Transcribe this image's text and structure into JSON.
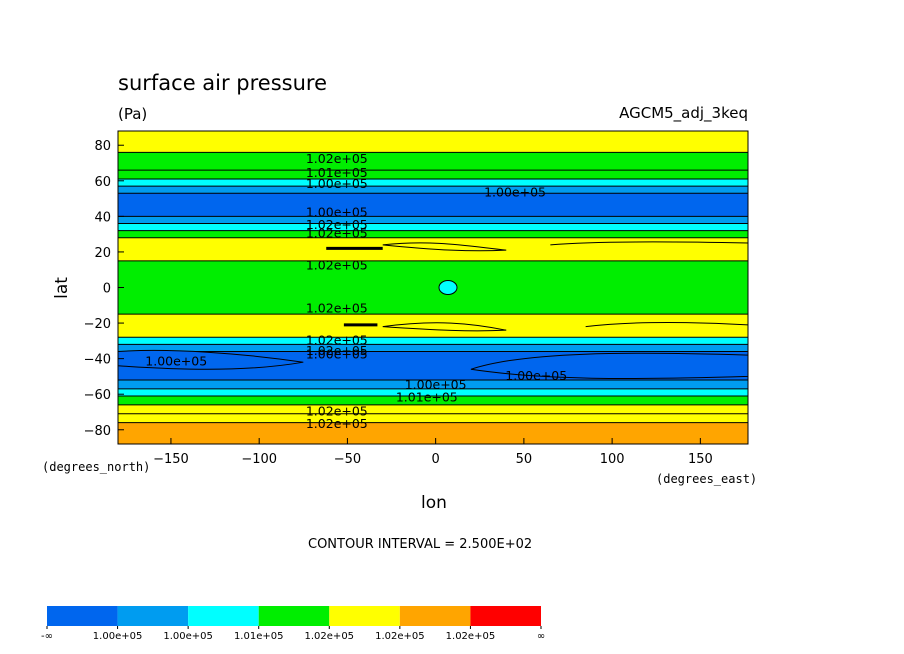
{
  "chart_data": {
    "type": "contour",
    "title": "surface air pressure",
    "subtitle": "(Pa)",
    "dataset_label": "AGCM5_adj_3keq",
    "xlabel": "lon",
    "ylabel": "lat",
    "x_units": "(degrees_east)",
    "y_units": "(degrees_north)",
    "xlim": [
      -180,
      177
    ],
    "ylim": [
      -88,
      88
    ],
    "x_ticks": [
      -150,
      -100,
      -50,
      0,
      50,
      100,
      150
    ],
    "y_ticks": [
      -80,
      -60,
      -40,
      -20,
      0,
      20,
      40,
      60,
      80
    ],
    "contour_interval_text": "CONTOUR INTERVAL = 2.500E+02",
    "contour_labels": [
      {
        "text": "1.02e+05",
        "lon": -56,
        "lat": 72
      },
      {
        "text": "1.01e+05",
        "lon": -56,
        "lat": 64
      },
      {
        "text": "1.00e+05",
        "lon": -56,
        "lat": 58
      },
      {
        "text": "1.00e+05",
        "lon": 45,
        "lat": 53
      },
      {
        "text": "1.00e+05",
        "lon": -56,
        "lat": 42
      },
      {
        "text": "1.02e+05",
        "lon": -56,
        "lat": 35
      },
      {
        "text": "1.02e+05",
        "lon": -56,
        "lat": 30
      },
      {
        "text": "1.02e+05",
        "lon": -56,
        "lat": 12
      },
      {
        "text": "1.02e+05",
        "lon": -56,
        "lat": -12
      },
      {
        "text": "1.02e+05",
        "lon": -56,
        "lat": -30
      },
      {
        "text": "1.02e+05",
        "lon": -56,
        "lat": -36
      },
      {
        "text": "1.00e+05",
        "lon": -56,
        "lat": -38
      },
      {
        "text": "1.00e+05",
        "lon": -147,
        "lat": -42
      },
      {
        "text": "1.00e+05",
        "lon": 57,
        "lat": -50
      },
      {
        "text": "1.00e+05",
        "lon": 0,
        "lat": -55
      },
      {
        "text": "1.01e+05",
        "lon": -5,
        "lat": -62
      },
      {
        "text": "1.02e+05",
        "lon": -56,
        "lat": -70
      },
      {
        "text": "1.02e+05",
        "lon": -56,
        "lat": -77
      }
    ],
    "colorbar": {
      "colors": [
        "#0066ee",
        "#009cf0",
        "#00ffff",
        "#00ee00",
        "#ffff00",
        "#ffa500",
        "#ff0000"
      ],
      "labels": [
        "-∞",
        "1.00e+05",
        "1.00e+05",
        "1.01e+05",
        "1.02e+05",
        "1.02e+05",
        "1.02e+05",
        "∞"
      ]
    },
    "bands": [
      {
        "lat": [
          -88,
          -76
        ],
        "level": 5
      },
      {
        "lat": [
          -76,
          -71
        ],
        "level": 4
      },
      {
        "lat": [
          -71,
          -66
        ],
        "level": 4
      },
      {
        "lat": [
          -66,
          -61
        ],
        "level": 3
      },
      {
        "lat": [
          -61,
          -57
        ],
        "level": 2
      },
      {
        "lat": [
          -57,
          -52
        ],
        "level": 1
      },
      {
        "lat": [
          -52,
          -36
        ],
        "level": 0
      },
      {
        "lat": [
          -36,
          -32
        ],
        "level": 1
      },
      {
        "lat": [
          -32,
          -28
        ],
        "level": 2
      },
      {
        "lat": [
          -28,
          -15
        ],
        "level": 4
      },
      {
        "lat": [
          -15,
          15
        ],
        "level": 3
      },
      {
        "lat": [
          15,
          28
        ],
        "level": 4
      },
      {
        "lat": [
          28,
          32
        ],
        "level": 3
      },
      {
        "lat": [
          32,
          36
        ],
        "level": 2
      },
      {
        "lat": [
          36,
          40
        ],
        "level": 1
      },
      {
        "lat": [
          40,
          53
        ],
        "level": 0
      },
      {
        "lat": [
          53,
          57
        ],
        "level": 1
      },
      {
        "lat": [
          57,
          61
        ],
        "level": 2
      },
      {
        "lat": [
          61,
          66
        ],
        "level": 3
      },
      {
        "lat": [
          66,
          76
        ],
        "level": 3
      },
      {
        "lat": [
          76,
          88
        ],
        "level": 4
      }
    ]
  }
}
